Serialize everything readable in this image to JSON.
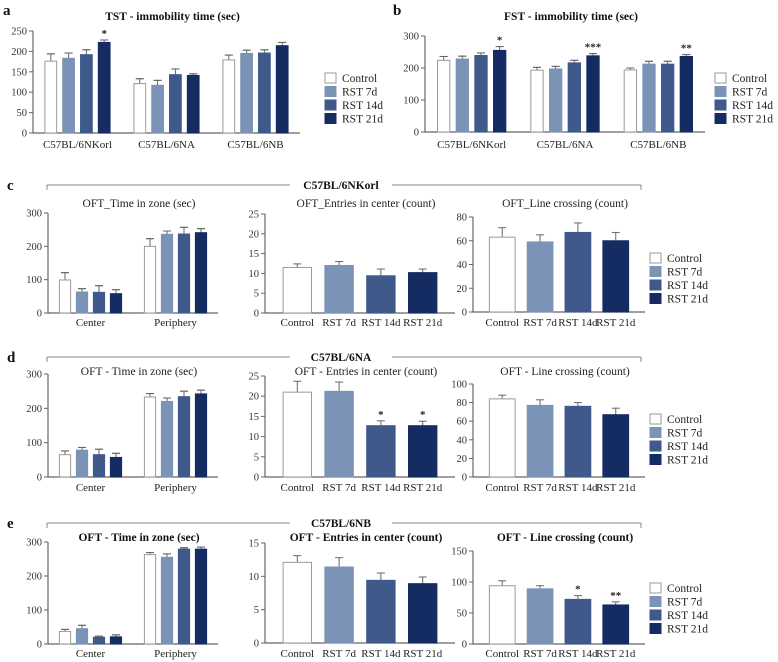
{
  "legend": [
    "Control",
    "RST 7d",
    "RST 14d",
    "RST 21d"
  ],
  "colors": {
    "Control": "#ffffff",
    "RST 7d": "#7b93b6",
    "RST 14d": "#3f5a8a",
    "RST 21d": "#152c63",
    "control_border": "#9a9a9a",
    "axis": "#666666"
  },
  "sections": [
    {
      "id": "c",
      "letter": "c",
      "strain": "C57BL/6NKorl"
    },
    {
      "id": "d",
      "letter": "d",
      "strain": "C57BL/6NA"
    },
    {
      "id": "e",
      "letter": "e",
      "strain": "C57BL/6NB"
    }
  ],
  "chart_data": [
    {
      "id": "a",
      "letter": "a",
      "type": "bar",
      "title": "TST - immobility time (sec)",
      "ylim": [
        0,
        250
      ],
      "yticks": [
        0,
        50,
        100,
        150,
        200,
        250
      ],
      "groups": [
        {
          "label": "C57BL/6NKorl",
          "values": [
            176,
            183,
            192,
            222
          ],
          "errors": [
            18,
            13,
            12,
            6
          ],
          "stars": [
            "",
            "",
            "",
            "*"
          ]
        },
        {
          "label": "C57BL/6NA",
          "values": [
            121,
            117,
            143,
            141
          ],
          "errors": [
            12,
            12,
            14,
            4
          ],
          "stars": [
            "",
            "",
            "",
            ""
          ]
        },
        {
          "label": "C57BL/6NB",
          "values": [
            179,
            195,
            196,
            214
          ],
          "errors": [
            12,
            8,
            8,
            8
          ],
          "stars": [
            "",
            "",
            "",
            ""
          ]
        }
      ]
    },
    {
      "id": "b",
      "letter": "b",
      "type": "bar",
      "title": "FST - immobility time (sec)",
      "ylim": [
        0,
        300
      ],
      "yticks": [
        0,
        100,
        200,
        300
      ],
      "groups": [
        {
          "label": "C57BL/6NKorl",
          "values": [
            224,
            228,
            239,
            255
          ],
          "errors": [
            12,
            9,
            8,
            12
          ],
          "stars": [
            "",
            "",
            "",
            "*"
          ]
        },
        {
          "label": "C57BL/6NA",
          "values": [
            193,
            197,
            216,
            238
          ],
          "errors": [
            9,
            8,
            8,
            7
          ],
          "stars": [
            "",
            "",
            "",
            "***"
          ]
        },
        {
          "label": "C57BL/6NB",
          "values": [
            194,
            212,
            212,
            236
          ],
          "errors": [
            6,
            9,
            9,
            6
          ],
          "stars": [
            "",
            "",
            "",
            "**"
          ]
        }
      ]
    },
    {
      "id": "c1",
      "type": "bar",
      "title": "OFT_Time in zone (sec)",
      "ylim": [
        0,
        300
      ],
      "yticks": [
        0,
        100,
        200,
        300
      ],
      "groups": [
        {
          "label": "Center",
          "values": [
            99,
            63,
            62,
            58
          ],
          "errors": [
            22,
            10,
            20,
            12
          ],
          "stars": [
            "",
            "",
            "",
            ""
          ]
        },
        {
          "label": "Periphery",
          "values": [
            200,
            236,
            237,
            241
          ],
          "errors": [
            23,
            10,
            20,
            12
          ],
          "stars": [
            "",
            "",
            "",
            ""
          ]
        }
      ]
    },
    {
      "id": "c2",
      "type": "bar",
      "title": "OFT_Entries in center (count)",
      "ylim": [
        0,
        25
      ],
      "yticks": [
        0,
        5,
        10,
        15,
        20,
        25
      ],
      "bar_labels": [
        "Control",
        "RST 7d",
        "RST 14d",
        "RST 21d"
      ],
      "groups": [
        {
          "label": "",
          "values": [
            11.5,
            12.0,
            9.4,
            10.2
          ],
          "errors": [
            0.9,
            1.0,
            1.7,
            0.9
          ],
          "stars": [
            "",
            "",
            "",
            ""
          ]
        }
      ]
    },
    {
      "id": "c3",
      "type": "bar",
      "title": "OFT_Line crossing (count)",
      "ylim": [
        0,
        80
      ],
      "yticks": [
        0,
        20,
        40,
        60,
        80
      ],
      "bar_labels": [
        "Control",
        "RST 7d",
        "RST 14d",
        "RST 21d"
      ],
      "groups": [
        {
          "label": "",
          "values": [
            63,
            59,
            67,
            60
          ],
          "errors": [
            8,
            6,
            8,
            7
          ],
          "stars": [
            "",
            "",
            "",
            ""
          ]
        }
      ]
    },
    {
      "id": "d1",
      "type": "bar",
      "title": "OFT - Time in zone (sec)",
      "ylim": [
        0,
        300
      ],
      "yticks": [
        0,
        100,
        200,
        300
      ],
      "groups": [
        {
          "label": "Center",
          "values": [
            65,
            78,
            65,
            57
          ],
          "errors": [
            11,
            8,
            16,
            12
          ],
          "stars": [
            "",
            "",
            "",
            ""
          ]
        },
        {
          "label": "Periphery",
          "values": [
            233,
            220,
            234,
            242
          ],
          "errors": [
            10,
            10,
            16,
            11
          ],
          "stars": [
            "",
            "",
            "",
            ""
          ]
        }
      ]
    },
    {
      "id": "d2",
      "type": "bar",
      "title": "OFT - Entries in center (count)",
      "ylim": [
        0,
        25
      ],
      "yticks": [
        0,
        5,
        10,
        15,
        20,
        25
      ],
      "bar_labels": [
        "Control",
        "RST 7d",
        "RST 14d",
        "RST 21d"
      ],
      "groups": [
        {
          "label": "",
          "values": [
            21.0,
            21.2,
            12.7,
            12.7
          ],
          "errors": [
            2.7,
            2.3,
            1.2,
            1.1
          ],
          "stars": [
            "",
            "",
            "*",
            "*"
          ]
        }
      ]
    },
    {
      "id": "d3",
      "type": "bar",
      "title": "OFT - Line crossing (count)",
      "ylim": [
        0,
        100
      ],
      "yticks": [
        0,
        20,
        40,
        60,
        80,
        100
      ],
      "bar_labels": [
        "Control",
        "RST 7d",
        "RST 14d",
        "RST 21d"
      ],
      "groups": [
        {
          "label": "",
          "values": [
            84,
            77,
            76,
            67
          ],
          "errors": [
            4,
            6,
            4,
            7
          ],
          "stars": [
            "",
            "",
            "",
            ""
          ]
        }
      ]
    },
    {
      "id": "e1",
      "type": "bar",
      "title": "OFT - Time in zone (sec)",
      "bold_title": true,
      "ylim": [
        0,
        300
      ],
      "yticks": [
        0,
        100,
        200,
        300
      ],
      "groups": [
        {
          "label": "Center",
          "values": [
            37,
            45,
            20,
            21
          ],
          "errors": [
            6,
            10,
            3,
            6
          ],
          "stars": [
            "",
            "",
            "",
            ""
          ]
        },
        {
          "label": "Periphery",
          "values": [
            263,
            255,
            279,
            279
          ],
          "errors": [
            6,
            10,
            4,
            6
          ],
          "stars": [
            "",
            "",
            "",
            ""
          ]
        }
      ]
    },
    {
      "id": "e2",
      "type": "bar",
      "title": "OFT - Entries in center (count)",
      "bold_title": true,
      "ylim": [
        0,
        15
      ],
      "yticks": [
        0,
        5,
        10,
        15
      ],
      "bar_labels": [
        "Control",
        "RST 7d",
        "RST 14d",
        "RST 21d"
      ],
      "groups": [
        {
          "label": "",
          "values": [
            12.1,
            11.4,
            9.4,
            8.9
          ],
          "errors": [
            1.0,
            1.4,
            1.1,
            1.0
          ],
          "stars": [
            "",
            "",
            "",
            ""
          ]
        }
      ]
    },
    {
      "id": "e3",
      "type": "bar",
      "title": "OFT - Line crossing (count)",
      "bold_title": true,
      "ylim": [
        0,
        150
      ],
      "yticks": [
        0,
        50,
        100,
        150
      ],
      "bar_labels": [
        "Control",
        "RST 7d",
        "RST 14d",
        "RST 21d"
      ],
      "groups": [
        {
          "label": "",
          "values": [
            94,
            89,
            72,
            63
          ],
          "errors": [
            8,
            5,
            6,
            5
          ],
          "stars": [
            "",
            "",
            "*",
            "**"
          ]
        }
      ]
    }
  ]
}
